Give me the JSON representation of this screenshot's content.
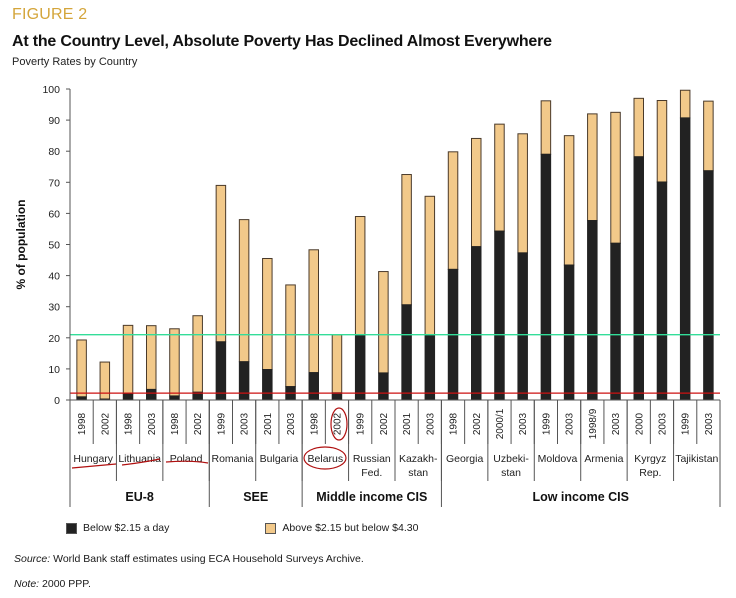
{
  "figure_label": "FIGURE 2",
  "title": "At the Country Level, Absolute Poverty Has Declined Almost Everywhere",
  "subtitle": "Poverty Rates by Country",
  "source_label": "Source:",
  "source_text": " World Bank staff estimates using ECA Household Surveys Archive.",
  "note_label": "Note:",
  "note_text": " 2000 PPP.",
  "colors": {
    "below": "#222222",
    "above": "#f2c98a",
    "green_line": "#33dd99",
    "red_line": "#cc1111",
    "annotation": "#b01010"
  },
  "chart_data": {
    "type": "bar",
    "stacked": true,
    "title": "At the Country Level, Absolute Poverty Has Declined Almost Everywhere",
    "subtitle": "Poverty Rates by Country",
    "xlabel": "",
    "ylabel": "% of population",
    "ylim": [
      0,
      100
    ],
    "yticks": [
      0,
      10,
      20,
      30,
      40,
      50,
      60,
      70,
      80,
      90,
      100
    ],
    "grid": false,
    "legend_position": "bottom",
    "legend": [
      "Below $2.15 a day",
      "Above $2.15 but below $4.30"
    ],
    "categories": [
      "1998",
      "2002",
      "1998",
      "2003",
      "1998",
      "2002",
      "1999",
      "2003",
      "2001",
      "2003",
      "1998",
      "2002",
      "1999",
      "2002",
      "2001",
      "2003",
      "1998",
      "2002",
      "2000/1",
      "2003",
      "1999",
      "2003",
      "1998/9",
      "2003",
      "2000",
      "2003",
      "1999",
      "2003"
    ],
    "countries": [
      {
        "name": [
          "Hungary"
        ],
        "span": 2
      },
      {
        "name": [
          "Lithuania"
        ],
        "span": 2
      },
      {
        "name": [
          "Poland"
        ],
        "span": 2
      },
      {
        "name": [
          "Romania"
        ],
        "span": 2
      },
      {
        "name": [
          "Bulgaria"
        ],
        "span": 2
      },
      {
        "name": [
          "Belarus"
        ],
        "span": 2
      },
      {
        "name": [
          "Russian",
          "Fed."
        ],
        "span": 2
      },
      {
        "name": [
          "Kazakh-",
          "stan"
        ],
        "span": 2
      },
      {
        "name": [
          "Georgia"
        ],
        "span": 2
      },
      {
        "name": [
          "Uzbeki-",
          "stan"
        ],
        "span": 2
      },
      {
        "name": [
          "Moldova"
        ],
        "span": 2
      },
      {
        "name": [
          "Armenia"
        ],
        "span": 2
      },
      {
        "name": [
          "Kyrgyz",
          "Rep."
        ],
        "span": 2
      },
      {
        "name": [
          "Tajikistan"
        ],
        "span": 2
      }
    ],
    "groups": [
      {
        "name": "EU-8",
        "span": 6
      },
      {
        "name": "SEE",
        "span": 4
      },
      {
        "name": "Middle income CIS",
        "span": 6
      },
      {
        "name": "Low income CIS",
        "span": 12
      }
    ],
    "series": [
      {
        "name": "Below $2.15 a day",
        "values": [
          1.0,
          0.3,
          2.0,
          3.4,
          1.3,
          2.5,
          18.7,
          12.3,
          9.8,
          4.3,
          8.8,
          2.3,
          21.0,
          8.7,
          30.6,
          21.0,
          42.0,
          49.3,
          54.3,
          47.3,
          79.0,
          43.4,
          57.7,
          50.4,
          78.2,
          70.1,
          90.7,
          73.7
        ]
      },
      {
        "name": "Above $2.15 but below $4.30",
        "totals": [
          19.3,
          12.2,
          24.0,
          23.9,
          22.9,
          27.1,
          69.0,
          58.0,
          45.5,
          37.0,
          48.3,
          21.0,
          59.0,
          41.3,
          72.5,
          65.5,
          79.8,
          84.1,
          88.7,
          85.6,
          96.2,
          85.0,
          92.0,
          92.5,
          97.0,
          96.3,
          99.6,
          96.1
        ]
      }
    ],
    "reference_lines": [
      {
        "name": "green-reference-line",
        "value": 21.0,
        "color": "#33dd99"
      },
      {
        "name": "red-reference-line",
        "value": 2.2,
        "color": "#cc1111"
      }
    ],
    "annotations": [
      "Handwritten red underlines beneath Hungary, Lithuania, Poland",
      "Handwritten red circles around Belarus label and its 2002 year label"
    ]
  }
}
